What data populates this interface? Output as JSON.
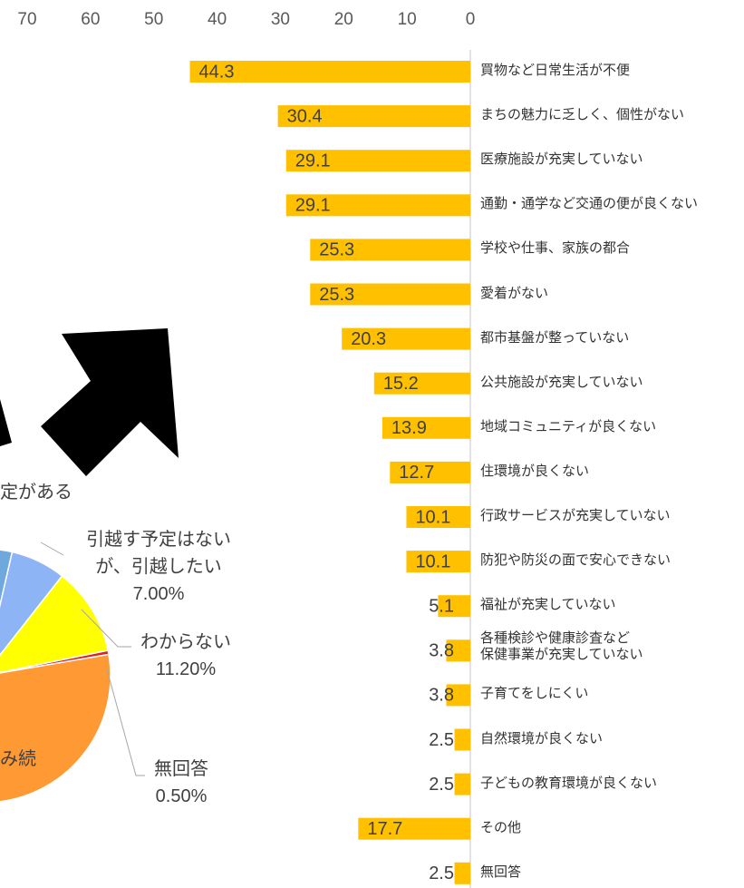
{
  "chart_data": [
    {
      "type": "bar",
      "orientation": "horizontal",
      "x_reversed": true,
      "categories": [
        "買物など日常生活が不便",
        "まちの魅力に乏しく、個性がない",
        "医療施設が充実していない",
        "通勤・通学など交通の便が良くない",
        "学校や仕事、家族の都合",
        "愛着がない",
        "都市基盤が整っていない",
        "公共施設が充実していない",
        "地域コミュニティが良くない",
        "住環境が良くない",
        "行政サービスが充実していない",
        "防犯や防災の面で安心できない",
        "福祉が充実していない",
        "各種検診や健康診査など\n保健事業が充実していない",
        "子育てをしにくい",
        "自然環境が良くない",
        "子どもの教育環境が良くない",
        "その他",
        "無回答"
      ],
      "values": [
        44.3,
        30.4,
        29.1,
        29.1,
        25.3,
        25.3,
        20.3,
        15.2,
        13.9,
        12.7,
        10.1,
        10.1,
        5.1,
        3.8,
        3.8,
        2.5,
        2.5,
        17.7,
        2.5
      ],
      "color": "#ffc000",
      "xlim": [
        0,
        70
      ],
      "xticks": [
        0,
        10,
        20,
        30,
        40,
        50,
        60,
        70
      ]
    },
    {
      "type": "pie",
      "labels": [
        "予定がある",
        "引越す予定はない\nが、引越したい",
        "わからない",
        "無回答",
        "住み続"
      ],
      "values": [
        3.6,
        7.0,
        11.2,
        0.5,
        77.7
      ],
      "value_labels": [
        "%",
        "7.00%",
        "11.20%",
        "0.50%",
        null
      ],
      "colors": [
        "#6fa8dc",
        "#8db4f5",
        "#ffff00",
        "#e02020",
        "#ff9933"
      ]
    }
  ]
}
